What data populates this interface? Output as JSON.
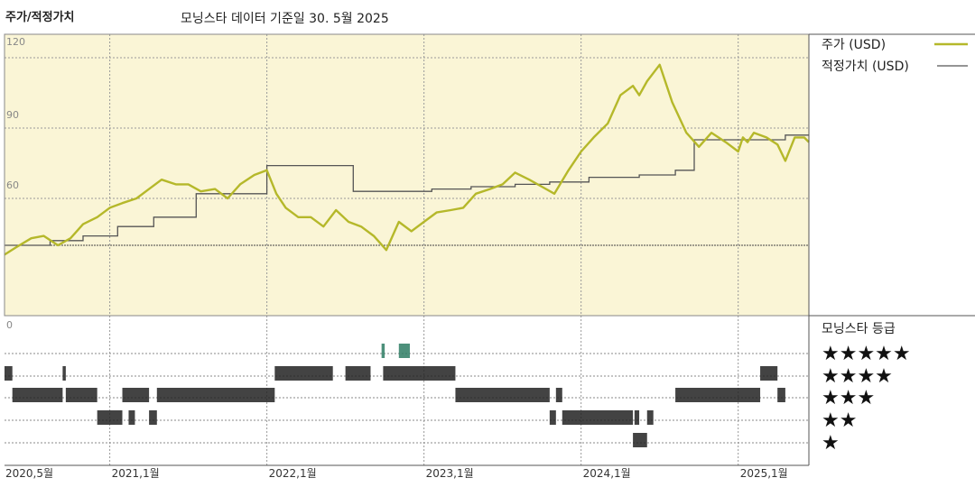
{
  "header": {
    "title": "주가/적정가치",
    "subtitle": "모닝스타 데이터 기준일 30. 5월 2025"
  },
  "legend": {
    "price_label": "주가 (USD)",
    "fair_label": "적정가치 (USD)",
    "rating_label": "모닝스타 등급"
  },
  "colors": {
    "price": "#b5b82a",
    "fair": "#555555",
    "plot_bg": "#faf5d6",
    "rating_bar": "#222222",
    "rating_bar_highlight": "#2e7d64"
  },
  "chart_data": {
    "type": "line",
    "yticks": [
      "120",
      "90",
      "60",
      "0"
    ],
    "ylim": [
      10,
      130
    ],
    "xlim": [
      2020.33,
      2025.45
    ],
    "xticks": [
      {
        "label": "2020,5월",
        "x": 2020.33
      },
      {
        "label": "2021,1월",
        "x": 2021.0
      },
      {
        "label": "2022,1월",
        "x": 2022.0
      },
      {
        "label": "2023,1월",
        "x": 2023.0
      },
      {
        "label": "2024,1월",
        "x": 2024.0
      },
      {
        "label": "2025,1월",
        "x": 2025.0
      }
    ],
    "series": [
      {
        "name": "주가 (USD)",
        "x": [
          2020.33,
          2020.4,
          2020.5,
          2020.58,
          2020.67,
          2020.75,
          2020.83,
          2020.92,
          2021.0,
          2021.08,
          2021.17,
          2021.25,
          2021.33,
          2021.42,
          2021.5,
          2021.58,
          2021.67,
          2021.75,
          2021.83,
          2021.92,
          2022.0,
          2022.06,
          2022.12,
          2022.2,
          2022.28,
          2022.36,
          2022.44,
          2022.52,
          2022.6,
          2022.68,
          2022.76,
          2022.84,
          2022.92,
          2023.0,
          2023.08,
          2023.17,
          2023.25,
          2023.33,
          2023.42,
          2023.5,
          2023.58,
          2023.67,
          2023.75,
          2023.83,
          2023.92,
          2024.0,
          2024.08,
          2024.17,
          2024.25,
          2024.33,
          2024.37,
          2024.42,
          2024.5,
          2024.58,
          2024.67,
          2024.75,
          2024.83,
          2024.92,
          2025.0,
          2025.03,
          2025.06,
          2025.1,
          2025.18,
          2025.25,
          2025.3,
          2025.36,
          2025.42,
          2025.45
        ],
        "y": [
          36,
          39,
          43,
          44,
          40,
          43,
          49,
          52,
          56,
          58,
          60,
          64,
          68,
          66,
          66,
          63,
          64,
          60,
          66,
          70,
          72,
          62,
          56,
          52,
          52,
          48,
          55,
          50,
          48,
          44,
          38,
          50,
          46,
          50,
          54,
          55,
          56,
          62,
          64,
          66,
          71,
          68,
          65,
          62,
          72,
          80,
          86,
          92,
          104,
          108,
          104,
          110,
          117,
          101,
          88,
          82,
          88,
          84,
          80,
          86,
          84,
          88,
          86,
          83,
          76,
          86,
          86,
          84
        ]
      },
      {
        "name": "적정가치 (USD)",
        "x": [
          2020.33,
          2020.62,
          2020.62,
          2020.83,
          2020.83,
          2021.05,
          2021.05,
          2021.28,
          2021.28,
          2021.55,
          2021.55,
          2022.0,
          2022.0,
          2022.55,
          2022.55,
          2023.05,
          2023.05,
          2023.3,
          2023.3,
          2023.58,
          2023.58,
          2023.8,
          2023.8,
          2024.05,
          2024.05,
          2024.37,
          2024.37,
          2024.6,
          2024.6,
          2024.72,
          2024.72,
          2025.3,
          2025.3,
          2025.45
        ],
        "y": [
          40,
          40,
          42,
          42,
          44,
          44,
          48,
          48,
          52,
          52,
          62,
          62,
          74,
          74,
          63,
          63,
          64,
          64,
          65,
          65,
          66,
          66,
          67,
          67,
          69,
          69,
          70,
          70,
          72,
          72,
          85,
          85,
          87,
          87
        ]
      }
    ],
    "rating_rows": [
      "★★★★★",
      "★★★★",
      "★★★",
      "★★",
      "★"
    ],
    "ratings": [
      {
        "stars": 5,
        "segments": [
          [
            2022.73,
            2022.75
          ],
          [
            2022.84,
            2022.91
          ]
        ]
      },
      {
        "stars": 4,
        "segments": [
          [
            2020.33,
            2020.38
          ],
          [
            2020.7,
            2020.72
          ],
          [
            2022.05,
            2022.42
          ],
          [
            2022.5,
            2022.66
          ],
          [
            2022.74,
            2023.2
          ],
          [
            2025.14,
            2025.25
          ]
        ]
      },
      {
        "stars": 3,
        "segments": [
          [
            2020.38,
            2020.7
          ],
          [
            2020.72,
            2020.92
          ],
          [
            2021.08,
            2021.25
          ],
          [
            2021.3,
            2022.05
          ],
          [
            2023.2,
            2023.8
          ],
          [
            2023.84,
            2023.88
          ],
          [
            2024.6,
            2025.14
          ],
          [
            2025.25,
            2025.3
          ]
        ]
      },
      {
        "stars": 2,
        "segments": [
          [
            2020.92,
            2021.08
          ],
          [
            2021.12,
            2021.16
          ],
          [
            2021.25,
            2021.3
          ],
          [
            2023.8,
            2023.84
          ],
          [
            2023.88,
            2024.33
          ],
          [
            2024.34,
            2024.37
          ],
          [
            2024.42,
            2024.46
          ]
        ]
      },
      {
        "stars": 1,
        "segments": [
          [
            2024.33,
            2024.42
          ]
        ]
      }
    ]
  }
}
